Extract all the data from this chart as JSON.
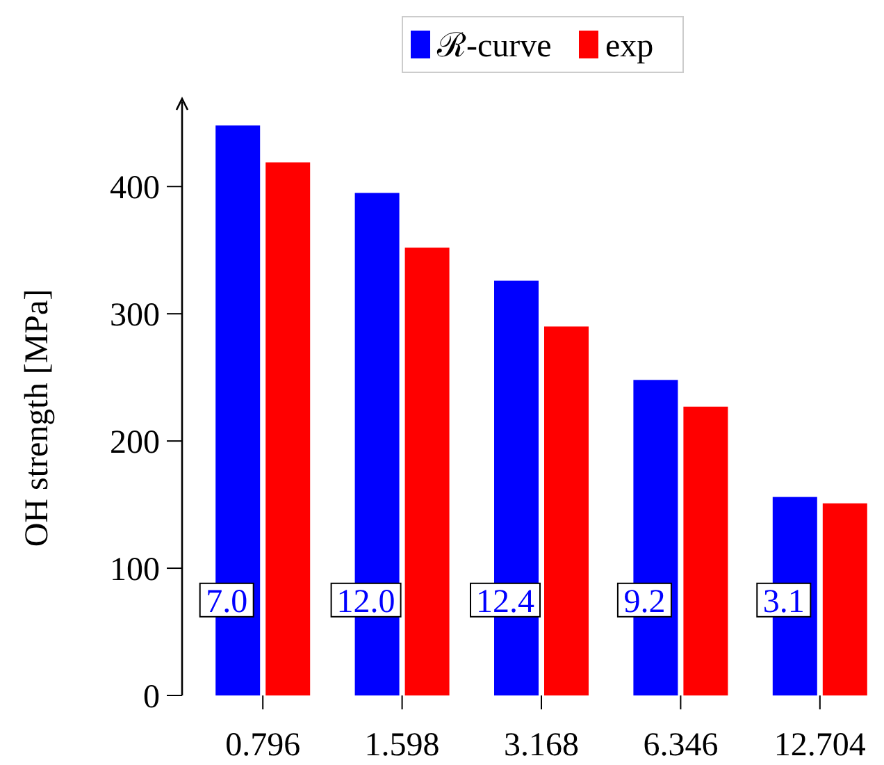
{
  "chart_data": {
    "type": "bar",
    "ylabel": "OH strength [MPa]",
    "categories": [
      "0.796",
      "1.598",
      "3.168",
      "6.346",
      "12.704"
    ],
    "series": [
      {
        "name": "ℛ-curve",
        "color": "#0000ff",
        "values": [
          448,
          395,
          326,
          248,
          156
        ]
      },
      {
        "name": "exp",
        "color": "#ff0000",
        "values": [
          419,
          352,
          290,
          227,
          151
        ]
      }
    ],
    "ylim": [
      0,
      469
    ],
    "yticks": [
      0,
      100,
      200,
      300,
      400
    ],
    "grid": false,
    "legend": "top",
    "annotations": [
      {
        "text": "7.0",
        "x": "0.796",
        "y": 75
      },
      {
        "text": "12.0",
        "x": "1.598",
        "y": 75
      },
      {
        "text": "12.4",
        "x": "3.168",
        "y": 75
      },
      {
        "text": "9.2",
        "x": "6.346",
        "y": 75
      },
      {
        "text": "3.1",
        "x": "12.704",
        "y": 75
      }
    ]
  }
}
